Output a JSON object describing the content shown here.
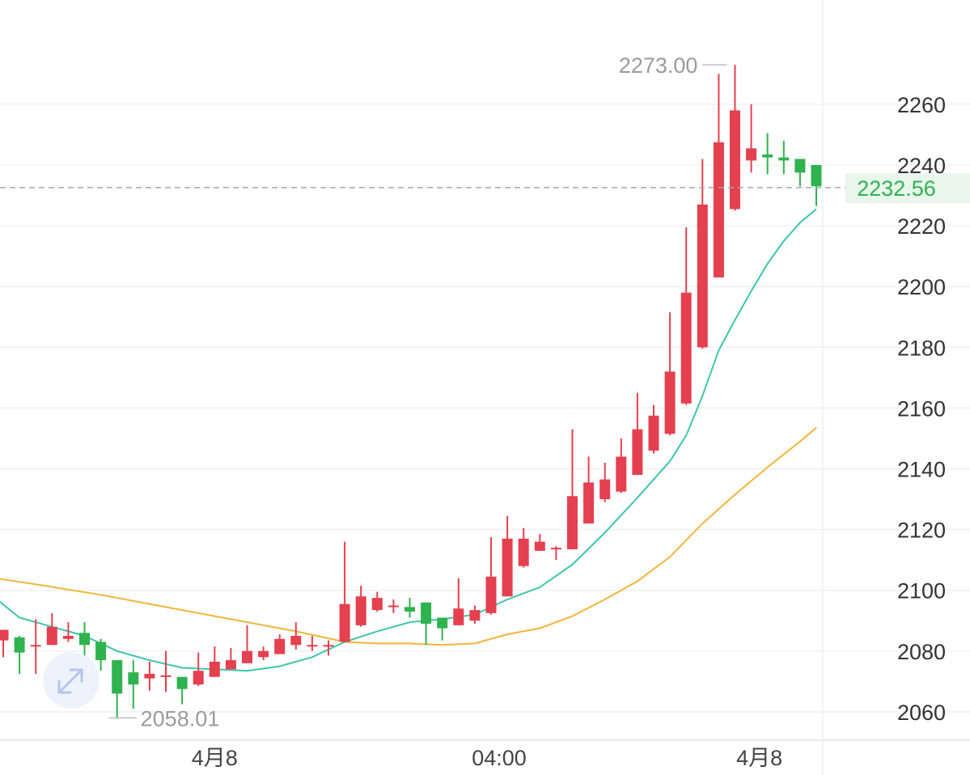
{
  "colors": {
    "up": "#e5404f",
    "down": "#2fb34f",
    "ma_fast": "#3cc6ad",
    "ma_slow": "#f2b53a",
    "grid": "#f0f0f0",
    "last_price_bg": "#e8f6ec",
    "last_price_text": "#2fb34f"
  },
  "chart_data": {
    "type": "candlestick",
    "ylim": [
      2050,
      2280
    ],
    "y_ticks": [
      "2060",
      "2080",
      "2100",
      "2120",
      "2140",
      "2160",
      "2180",
      "2200",
      "2220",
      "2240",
      "2260"
    ],
    "x_ticks": [
      {
        "label": "4月8",
        "index": 13
      },
      {
        "label": "04:00",
        "index": 30.5
      },
      {
        "label": "4月8",
        "index": 46.5
      }
    ],
    "grid": true,
    "high_label": "2273.00",
    "high_value": 2273.0,
    "high_index": 44.5,
    "low_label": "2058.01",
    "low_value": 2058.01,
    "low_index": 6.5,
    "last_price": {
      "label": "2232.56",
      "value": 2232.56
    },
    "candles": [
      {
        "o": 2083.5,
        "h": 2087,
        "c": 2087,
        "l": 2078
      },
      {
        "o": 2084.5,
        "h": 2085,
        "c": 2079.5,
        "l": 2072.5
      },
      {
        "o": 2082,
        "h": 2090.5,
        "c": 2082,
        "l": 2072.5
      },
      {
        "o": 2082,
        "h": 2092.5,
        "c": 2088,
        "l": 2082
      },
      {
        "o": 2084,
        "h": 2089.5,
        "c": 2085,
        "l": 2083
      },
      {
        "o": 2086,
        "h": 2089.5,
        "c": 2082,
        "l": 2078
      },
      {
        "o": 2083,
        "h": 2084,
        "c": 2077,
        "l": 2073.5
      },
      {
        "o": 2077,
        "h": 2077,
        "c": 2066,
        "l": 2058.01
      },
      {
        "o": 2073,
        "h": 2077,
        "c": 2069,
        "l": 2061
      },
      {
        "o": 2071,
        "h": 2076.5,
        "c": 2072.5,
        "l": 2067
      },
      {
        "o": 2072,
        "h": 2080,
        "c": 2072,
        "l": 2066.5
      },
      {
        "o": 2071.5,
        "h": 2071.5,
        "c": 2067.5,
        "l": 2062.5
      },
      {
        "o": 2069,
        "h": 2079.5,
        "c": 2073.5,
        "l": 2068.5
      },
      {
        "o": 2071.5,
        "h": 2081.5,
        "c": 2076.5,
        "l": 2071.5
      },
      {
        "o": 2074,
        "h": 2081,
        "c": 2077,
        "l": 2074
      },
      {
        "o": 2076,
        "h": 2088.5,
        "c": 2080,
        "l": 2076
      },
      {
        "o": 2078,
        "h": 2081.5,
        "c": 2080,
        "l": 2077
      },
      {
        "o": 2079,
        "h": 2085.5,
        "c": 2084,
        "l": 2079
      },
      {
        "o": 2082,
        "h": 2089.5,
        "c": 2085,
        "l": 2080.5
      },
      {
        "o": 2082,
        "h": 2085,
        "c": 2082,
        "l": 2080
      },
      {
        "o": 2082,
        "h": 2083.5,
        "c": 2082,
        "l": 2078.5
      },
      {
        "o": 2083,
        "h": 2116,
        "c": 2095.5,
        "l": 2083
      },
      {
        "o": 2088.5,
        "h": 2101.5,
        "c": 2098,
        "l": 2088
      },
      {
        "o": 2093.5,
        "h": 2099.5,
        "c": 2097.5,
        "l": 2093
      },
      {
        "o": 2095,
        "h": 2097,
        "c": 2095,
        "l": 2092.5
      },
      {
        "o": 2094.5,
        "h": 2097.5,
        "c": 2093,
        "l": 2091
      },
      {
        "o": 2096,
        "h": 2096,
        "c": 2089,
        "l": 2082
      },
      {
        "o": 2091,
        "h": 2091,
        "c": 2087.5,
        "l": 2083.5
      },
      {
        "o": 2088.5,
        "h": 2104,
        "c": 2094,
        "l": 2088.5
      },
      {
        "o": 2090,
        "h": 2095,
        "c": 2093.5,
        "l": 2089
      },
      {
        "o": 2092.5,
        "h": 2117.5,
        "c": 2104.5,
        "l": 2092
      },
      {
        "o": 2098,
        "h": 2124.5,
        "c": 2117,
        "l": 2098
      },
      {
        "o": 2108,
        "h": 2120.5,
        "c": 2117,
        "l": 2107.5
      },
      {
        "o": 2113,
        "h": 2118.5,
        "c": 2116,
        "l": 2113
      },
      {
        "o": 2114,
        "h": 2114.5,
        "c": 2114,
        "l": 2110
      },
      {
        "o": 2113.5,
        "h": 2153,
        "c": 2131,
        "l": 2113.5
      },
      {
        "o": 2122,
        "h": 2144,
        "c": 2135.5,
        "l": 2122
      },
      {
        "o": 2130,
        "h": 2142,
        "c": 2136.5,
        "l": 2129
      },
      {
        "o": 2132.5,
        "h": 2150,
        "c": 2144,
        "l": 2132
      },
      {
        "o": 2138,
        "h": 2165,
        "c": 2153,
        "l": 2138
      },
      {
        "o": 2146,
        "h": 2161,
        "c": 2157.5,
        "l": 2145
      },
      {
        "o": 2151.5,
        "h": 2191.5,
        "c": 2172,
        "l": 2151
      },
      {
        "o": 2161.5,
        "h": 2219.5,
        "c": 2198,
        "l": 2161
      },
      {
        "o": 2180,
        "h": 2242,
        "c": 2227,
        "l": 2179.5
      },
      {
        "o": 2203,
        "h": 2270,
        "c": 2247.5,
        "l": 2203
      },
      {
        "o": 2225.5,
        "h": 2273,
        "c": 2258,
        "l": 2225
      },
      {
        "o": 2241.5,
        "h": 2260,
        "c": 2245.5,
        "l": 2237.5
      },
      {
        "o": 2243.5,
        "h": 2250.5,
        "c": 2242.5,
        "l": 2237
      },
      {
        "o": 2242.5,
        "h": 2248,
        "c": 2241.5,
        "l": 2237
      },
      {
        "o": 2242,
        "h": 2242,
        "c": 2237.5,
        "l": 2233
      },
      {
        "o": 2240,
        "h": 2240,
        "c": 2233,
        "l": 2226.5
      }
    ],
    "ma_fast": [
      {
        "i": -0.5,
        "v": 2097.5
      },
      {
        "i": 1,
        "v": 2091
      },
      {
        "i": 3,
        "v": 2088
      },
      {
        "i": 5,
        "v": 2085
      },
      {
        "i": 7,
        "v": 2080
      },
      {
        "i": 9,
        "v": 2077
      },
      {
        "i": 11,
        "v": 2074.5
      },
      {
        "i": 13,
        "v": 2074
      },
      {
        "i": 15,
        "v": 2073.5
      },
      {
        "i": 17,
        "v": 2075
      },
      {
        "i": 19,
        "v": 2078
      },
      {
        "i": 21,
        "v": 2083
      },
      {
        "i": 23,
        "v": 2086.5
      },
      {
        "i": 25,
        "v": 2089.5
      },
      {
        "i": 27,
        "v": 2090.5
      },
      {
        "i": 29,
        "v": 2092
      },
      {
        "i": 31,
        "v": 2097
      },
      {
        "i": 33,
        "v": 2101
      },
      {
        "i": 35,
        "v": 2108.5
      },
      {
        "i": 37,
        "v": 2119
      },
      {
        "i": 39,
        "v": 2130.5
      },
      {
        "i": 41,
        "v": 2142.5
      },
      {
        "i": 42,
        "v": 2151
      },
      {
        "i": 43,
        "v": 2164
      },
      {
        "i": 44,
        "v": 2179
      },
      {
        "i": 45,
        "v": 2189
      },
      {
        "i": 46,
        "v": 2198.5
      },
      {
        "i": 47,
        "v": 2207.5
      },
      {
        "i": 48,
        "v": 2215
      },
      {
        "i": 49,
        "v": 2221
      },
      {
        "i": 50,
        "v": 2225.5
      }
    ],
    "ma_slow": [
      {
        "i": -0.5,
        "v": 2104
      },
      {
        "i": 2,
        "v": 2102
      },
      {
        "i": 6,
        "v": 2098.5
      },
      {
        "i": 10,
        "v": 2094.5
      },
      {
        "i": 14,
        "v": 2090.5
      },
      {
        "i": 18,
        "v": 2086.5
      },
      {
        "i": 21,
        "v": 2083
      },
      {
        "i": 23,
        "v": 2082.5
      },
      {
        "i": 25,
        "v": 2082.5
      },
      {
        "i": 27,
        "v": 2082
      },
      {
        "i": 29,
        "v": 2082.5
      },
      {
        "i": 31,
        "v": 2085.5
      },
      {
        "i": 33,
        "v": 2087.5
      },
      {
        "i": 35,
        "v": 2091.5
      },
      {
        "i": 37,
        "v": 2097
      },
      {
        "i": 39,
        "v": 2103
      },
      {
        "i": 41,
        "v": 2111
      },
      {
        "i": 43,
        "v": 2122
      },
      {
        "i": 45,
        "v": 2131.5
      },
      {
        "i": 47,
        "v": 2140.5
      },
      {
        "i": 49,
        "v": 2149
      },
      {
        "i": 50,
        "v": 2153.5
      }
    ]
  }
}
